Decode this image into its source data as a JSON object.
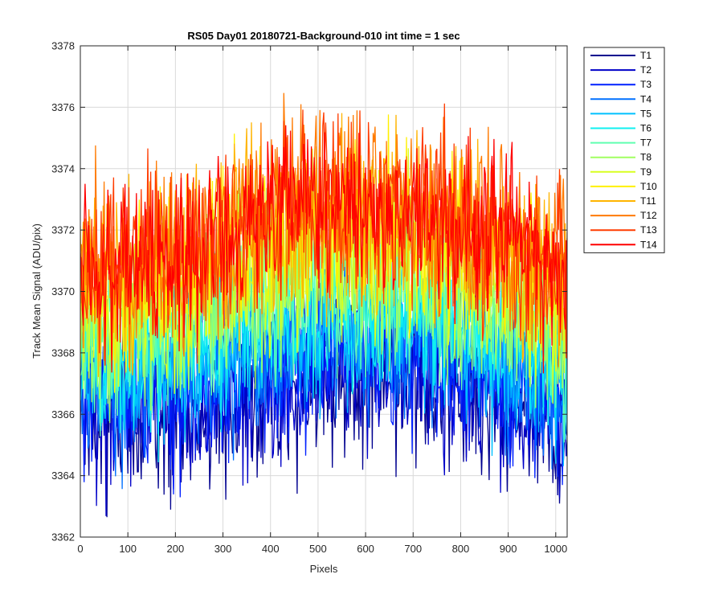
{
  "chart_data": {
    "type": "line",
    "title": "RS05 Day01 20180721-Background-010 int time = 1 sec",
    "xlabel": "Pixels",
    "ylabel": "Track Mean Signal (ADU/pix)",
    "xlim": [
      0,
      1024
    ],
    "ylim": [
      3362,
      3378
    ],
    "xticks": [
      0,
      100,
      200,
      300,
      400,
      500,
      600,
      700,
      800,
      900,
      1000
    ],
    "yticks": [
      3362,
      3364,
      3366,
      3368,
      3370,
      3372,
      3374,
      3376,
      3378
    ],
    "grid": true,
    "legend_position": "outside-top-right",
    "x_control": [
      0,
      100,
      200,
      300,
      400,
      500,
      600,
      700,
      800,
      900,
      1024
    ],
    "series": [
      {
        "name": "T1",
        "color": "#00008F",
        "mean_profile": [
          3366.3,
          3365.8,
          3366.1,
          3366.4,
          3366.8,
          3367.1,
          3367.3,
          3367.2,
          3366.8,
          3366.2,
          3365.6
        ],
        "noise_pp": 3.5
      },
      {
        "name": "T2",
        "color": "#0000C8",
        "mean_profile": [
          3366.6,
          3366.1,
          3366.4,
          3366.8,
          3367.2,
          3367.5,
          3367.6,
          3367.5,
          3367.1,
          3366.5,
          3365.9
        ],
        "noise_pp": 3.5
      },
      {
        "name": "T3",
        "color": "#0020FF",
        "mean_profile": [
          3366.9,
          3366.5,
          3366.8,
          3367.2,
          3367.6,
          3367.9,
          3368.0,
          3367.9,
          3367.5,
          3366.9,
          3366.3
        ],
        "noise_pp": 3.4
      },
      {
        "name": "T4",
        "color": "#0070FF",
        "mean_profile": [
          3367.3,
          3366.9,
          3367.3,
          3367.7,
          3368.1,
          3368.4,
          3368.5,
          3368.4,
          3368.0,
          3367.4,
          3366.8
        ],
        "noise_pp": 3.4
      },
      {
        "name": "T5",
        "color": "#00C0FF",
        "mean_profile": [
          3367.7,
          3367.4,
          3367.8,
          3368.2,
          3368.6,
          3368.9,
          3369.0,
          3368.9,
          3368.5,
          3367.9,
          3367.3
        ],
        "noise_pp": 3.4
      },
      {
        "name": "T6",
        "color": "#10F0F0",
        "mean_profile": [
          3368.0,
          3367.8,
          3368.2,
          3368.7,
          3369.1,
          3369.4,
          3369.5,
          3369.3,
          3368.9,
          3368.3,
          3367.7
        ],
        "noise_pp": 3.4
      },
      {
        "name": "T7",
        "color": "#60FFB0",
        "mean_profile": [
          3368.5,
          3368.3,
          3368.8,
          3369.3,
          3369.8,
          3370.1,
          3370.1,
          3369.9,
          3369.5,
          3368.9,
          3368.2
        ],
        "noise_pp": 3.4
      },
      {
        "name": "T8",
        "color": "#A0FF60",
        "mean_profile": [
          3369.1,
          3368.9,
          3369.4,
          3370.0,
          3370.5,
          3370.8,
          3370.8,
          3370.6,
          3370.1,
          3369.5,
          3368.8
        ],
        "noise_pp": 3.5
      },
      {
        "name": "T9",
        "color": "#D8FF20",
        "mean_profile": [
          3369.7,
          3369.5,
          3370.1,
          3370.7,
          3371.2,
          3371.5,
          3371.5,
          3371.3,
          3370.8,
          3370.1,
          3369.4
        ],
        "noise_pp": 3.6
      },
      {
        "name": "T10",
        "color": "#FFF000",
        "mean_profile": [
          3370.2,
          3370.0,
          3370.6,
          3371.3,
          3371.8,
          3372.1,
          3372.1,
          3371.9,
          3371.4,
          3370.7,
          3370.0
        ],
        "noise_pp": 3.7
      },
      {
        "name": "T11",
        "color": "#FFB400",
        "mean_profile": [
          3370.6,
          3370.4,
          3371.0,
          3371.7,
          3372.2,
          3372.5,
          3372.5,
          3372.3,
          3371.8,
          3371.1,
          3370.4
        ],
        "noise_pp": 3.8
      },
      {
        "name": "T12",
        "color": "#FF7A00",
        "mean_profile": [
          3370.9,
          3370.7,
          3371.3,
          3372.0,
          3372.5,
          3372.8,
          3372.8,
          3372.6,
          3372.1,
          3371.4,
          3370.7
        ],
        "noise_pp": 3.9
      },
      {
        "name": "T13",
        "color": "#FF3C00",
        "mean_profile": [
          3370.8,
          3370.8,
          3371.4,
          3372.1,
          3372.6,
          3372.9,
          3372.9,
          3372.7,
          3372.2,
          3371.5,
          3370.8
        ],
        "noise_pp": 3.9
      },
      {
        "name": "T14",
        "color": "#FF0000",
        "mean_profile": [
          3370.4,
          3370.8,
          3371.4,
          3372.0,
          3372.5,
          3372.8,
          3372.8,
          3372.6,
          3372.1,
          3371.4,
          3370.6
        ],
        "noise_pp": 3.6
      }
    ]
  }
}
